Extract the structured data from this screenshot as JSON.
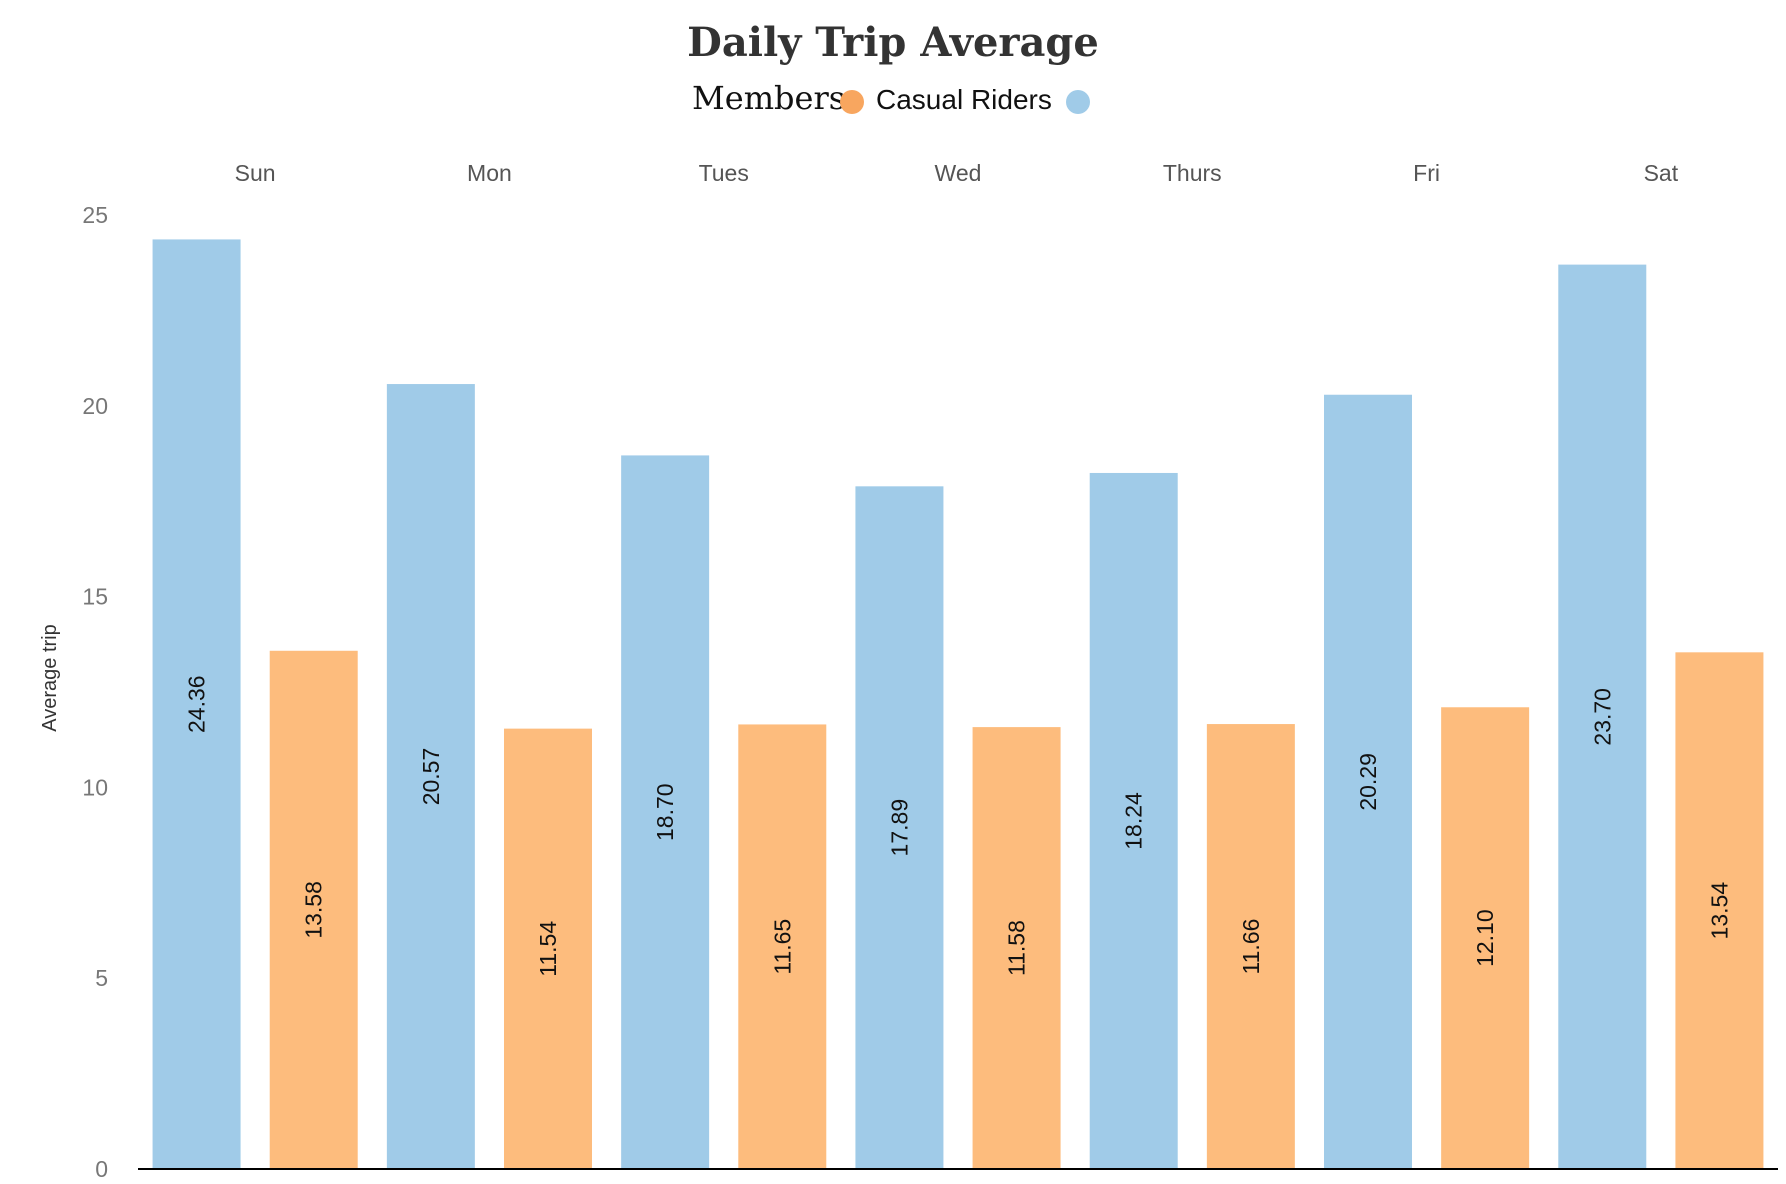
{
  "chart_data": {
    "type": "bar",
    "title": "Daily Trip Average",
    "legend": {
      "placement": "top-center",
      "items": [
        {
          "name": "Members",
          "color": "#f8a65f"
        },
        {
          "name": "Casual Riders",
          "color": "#a0cbe8"
        }
      ]
    },
    "ylabel": "Average trip",
    "xlabel": "",
    "ylim": [
      0,
      25
    ],
    "yticks": [
      0,
      5,
      10,
      15,
      20,
      25
    ],
    "grid": false,
    "categories": [
      "Sun",
      "Mon",
      "Tues",
      "Wed",
      "Thurs",
      "Fri",
      "Sat"
    ],
    "series": [
      {
        "name": "Casual Riders",
        "color": "#a0cbe8",
        "values": [
          24.36,
          20.57,
          18.7,
          17.89,
          18.24,
          20.29,
          23.7
        ],
        "labels": [
          "24.36",
          "20.57",
          "18.70",
          "17.89",
          "18.24",
          "20.29",
          "23.70"
        ]
      },
      {
        "name": "Members",
        "color": "#fdbc7d",
        "values": [
          13.58,
          11.54,
          11.65,
          11.58,
          11.66,
          12.1,
          13.54
        ],
        "labels": [
          "13.58",
          "11.54",
          "11.65",
          "11.58",
          "11.66",
          "12.10",
          "13.54"
        ]
      }
    ]
  }
}
